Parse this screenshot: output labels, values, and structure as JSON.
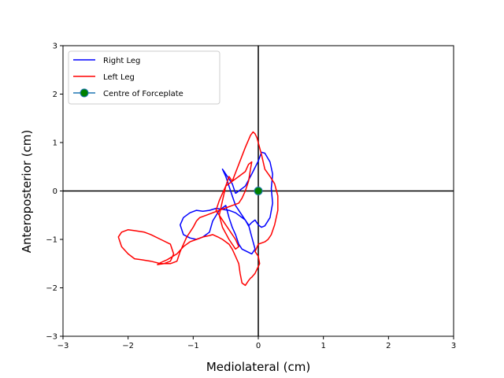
{
  "chart_data": {
    "type": "line",
    "title": "",
    "xlabel": "Mediolateral (cm)",
    "ylabel": "Anteroposterior (cm)",
    "xlim": [
      -3,
      3
    ],
    "ylim": [
      -3,
      3
    ],
    "xticks": [
      -3,
      -2,
      -1,
      0,
      1,
      2,
      3
    ],
    "yticks": [
      -3,
      -2,
      -1,
      0,
      1,
      2,
      3
    ],
    "xtick_labels": [
      "−3",
      "−2",
      "−1",
      "0",
      "1",
      "2",
      "3"
    ],
    "ytick_labels": [
      "−3",
      "−2",
      "−1",
      "0",
      "1",
      "2",
      "3"
    ],
    "grid": false,
    "reference_lines": [
      {
        "orientation": "horizontal",
        "value": 0,
        "color": "#000000"
      },
      {
        "orientation": "vertical",
        "value": 0,
        "color": "#000000"
      }
    ],
    "legend": {
      "position": "upper-left",
      "entries": [
        "Right Leg",
        "Left Leg",
        "Centre of Forceplate"
      ]
    },
    "series": [
      {
        "name": "Right Leg",
        "color": "#0000ff",
        "x": [
          -0.35,
          -0.2,
          -0.1,
          0.0,
          0.05,
          0.1,
          0.18,
          0.22,
          0.2,
          0.22,
          0.18,
          0.1,
          0.05,
          0.0,
          -0.05,
          -0.1,
          -0.15,
          -0.2,
          -0.35,
          -0.45,
          -0.55,
          -0.65,
          -0.75,
          -0.85,
          -0.95,
          -1.05,
          -1.15,
          -1.2,
          -1.15,
          -1.05,
          -0.95,
          -0.85,
          -0.75,
          -0.7,
          -0.6,
          -0.5,
          -0.45,
          -0.4,
          -0.35,
          -0.3,
          -0.25,
          -0.1,
          -0.05,
          -0.1,
          -0.15,
          -0.25,
          -0.35,
          -0.4,
          -0.45,
          -0.5,
          -0.55,
          -0.5,
          -0.4,
          -0.35
        ],
        "y": [
          -0.05,
          0.1,
          0.35,
          0.62,
          0.8,
          0.78,
          0.6,
          0.35,
          0.05,
          -0.25,
          -0.55,
          -0.72,
          -0.75,
          -0.7,
          -0.6,
          -0.65,
          -0.72,
          -0.6,
          -0.45,
          -0.4,
          -0.38,
          -0.36,
          -0.4,
          -0.42,
          -0.4,
          -0.45,
          -0.55,
          -0.7,
          -0.9,
          -0.97,
          -1.0,
          -0.95,
          -0.85,
          -0.62,
          -0.4,
          -0.3,
          -0.55,
          -0.75,
          -0.9,
          -1.1,
          -1.2,
          -1.3,
          -1.2,
          -0.95,
          -0.7,
          -0.5,
          -0.3,
          -0.1,
          0.1,
          0.3,
          0.45,
          0.35,
          0.15,
          -0.05
        ]
      },
      {
        "name": "Left Leg",
        "color": "#ff0000",
        "x": [
          -0.4,
          -0.3,
          -0.2,
          -0.12,
          -0.08,
          -0.05,
          -0.02,
          0.05,
          0.1,
          0.18,
          0.25,
          0.3,
          0.3,
          0.25,
          0.2,
          0.15,
          0.1,
          0.0,
          -0.05,
          0.0,
          0.02,
          -0.05,
          -0.1,
          -0.12,
          -0.15,
          -0.2,
          -0.25,
          -0.28,
          -0.3,
          -0.35,
          -0.4,
          -0.45,
          -0.5,
          -0.55,
          -0.62,
          -0.7,
          -0.75,
          -0.85,
          -0.95,
          -1.05,
          -1.15,
          -1.25,
          -1.4,
          -1.5,
          -1.55,
          -1.45,
          -1.35,
          -1.3,
          -1.35,
          -1.5,
          -1.65,
          -1.75,
          -1.9,
          -2.0,
          -2.1,
          -2.15,
          -2.1,
          -2.0,
          -1.9,
          -1.8,
          -1.65,
          -1.5,
          -1.35,
          -1.25,
          -1.2,
          -1.1,
          -1.05,
          -1.0,
          -0.95,
          -0.9,
          -0.8,
          -0.7,
          -0.6,
          -0.5,
          -0.4,
          -0.3,
          -0.25,
          -0.2,
          -0.15,
          -0.12,
          -0.1,
          -0.15,
          -0.2,
          -0.3,
          -0.4,
          -0.5,
          -0.55,
          -0.6,
          -0.65,
          -0.55,
          -0.45,
          -0.35,
          -0.3,
          -0.35,
          -0.45,
          -0.55,
          -0.6,
          -0.55,
          -0.5,
          -0.45,
          -0.4
        ],
        "y": [
          0.2,
          0.55,
          0.9,
          1.15,
          1.22,
          1.18,
          1.1,
          0.75,
          0.45,
          0.3,
          0.15,
          -0.1,
          -0.4,
          -0.7,
          -0.9,
          -1.0,
          -1.05,
          -1.1,
          -1.25,
          -1.35,
          -1.5,
          -1.7,
          -1.78,
          -1.8,
          -1.85,
          -1.95,
          -1.9,
          -1.7,
          -1.5,
          -1.35,
          -1.2,
          -1.1,
          -1.05,
          -1.0,
          -0.95,
          -0.9,
          -0.92,
          -0.95,
          -1.0,
          -1.05,
          -1.15,
          -1.3,
          -1.42,
          -1.48,
          -1.52,
          -1.5,
          -1.45,
          -1.3,
          -1.1,
          -1.0,
          -0.9,
          -0.85,
          -0.82,
          -0.8,
          -0.85,
          -0.95,
          -1.15,
          -1.3,
          -1.4,
          -1.42,
          -1.45,
          -1.5,
          -1.5,
          -1.45,
          -1.25,
          -0.95,
          -0.85,
          -0.75,
          -0.62,
          -0.55,
          -0.5,
          -0.45,
          -0.4,
          -0.35,
          -0.3,
          -0.25,
          -0.15,
          0.0,
          0.2,
          0.45,
          0.6,
          0.55,
          0.4,
          0.3,
          0.2,
          0.1,
          -0.05,
          -0.2,
          -0.4,
          -0.6,
          -0.8,
          -1.0,
          -1.15,
          -1.2,
          -1.0,
          -0.75,
          -0.5,
          -0.2,
          0.1,
          0.3,
          0.2
        ]
      }
    ],
    "points": [
      {
        "name": "Centre of Forceplate",
        "x": 0,
        "y": 0,
        "face_color": "#008000",
        "edge_color": "#1f77b4"
      }
    ]
  }
}
